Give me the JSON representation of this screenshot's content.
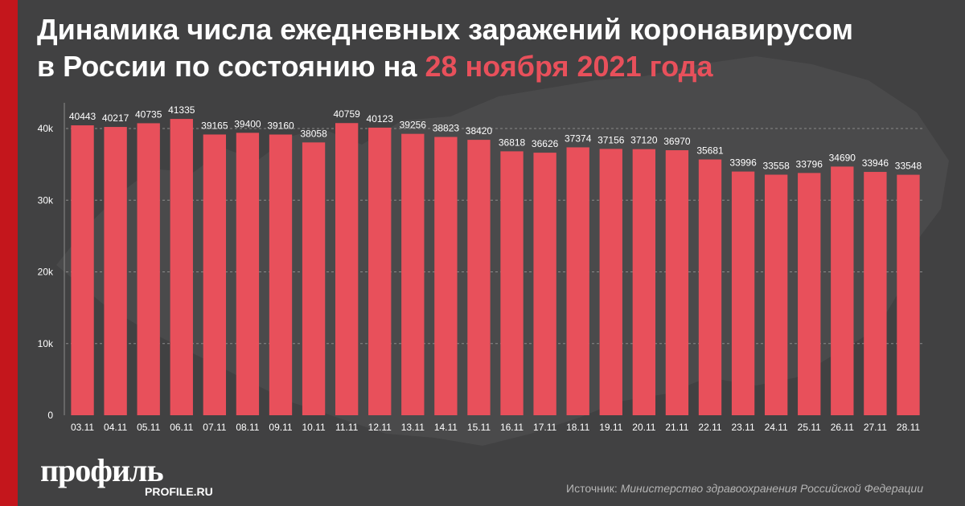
{
  "title": {
    "line1": "Динамика числа ежедневных заражений коронавирусом",
    "line2_prefix": "в России по состоянию на ",
    "line2_accent": "28 ноября 2021 года"
  },
  "logo": {
    "main": "профиль",
    "sub": "PROFILE.RU"
  },
  "source": {
    "label": "Источник: ",
    "org": "Министерство здравоохранения Российской Федерации"
  },
  "colors": {
    "bar": "#e8505b",
    "background": "#414142",
    "accent_stripe": "#c4161c",
    "title_accent": "#e8505b"
  },
  "chart_data": {
    "type": "bar",
    "categories": [
      "03.11",
      "04.11",
      "05.11",
      "06.11",
      "07.11",
      "08.11",
      "09.11",
      "10.11",
      "11.11",
      "12.11",
      "13.11",
      "14.11",
      "15.11",
      "16.11",
      "17.11",
      "18.11",
      "19.11",
      "20.11",
      "21.11",
      "22.11",
      "23.11",
      "24.11",
      "25.11",
      "26.11",
      "27.11",
      "28.11"
    ],
    "values": [
      40443,
      40217,
      40735,
      41335,
      39165,
      39400,
      39160,
      38058,
      40759,
      40123,
      39256,
      38823,
      38420,
      36818,
      36626,
      37374,
      37156,
      37120,
      36970,
      35681,
      33996,
      33558,
      33796,
      34690,
      33946,
      33548
    ],
    "ylim": [
      0,
      40000
    ],
    "yticks": [
      0,
      10000,
      20000,
      30000,
      40000
    ],
    "ytick_labels": [
      "0",
      "10k",
      "20k",
      "30k",
      "40k"
    ],
    "grid": true,
    "data_labels": true
  }
}
